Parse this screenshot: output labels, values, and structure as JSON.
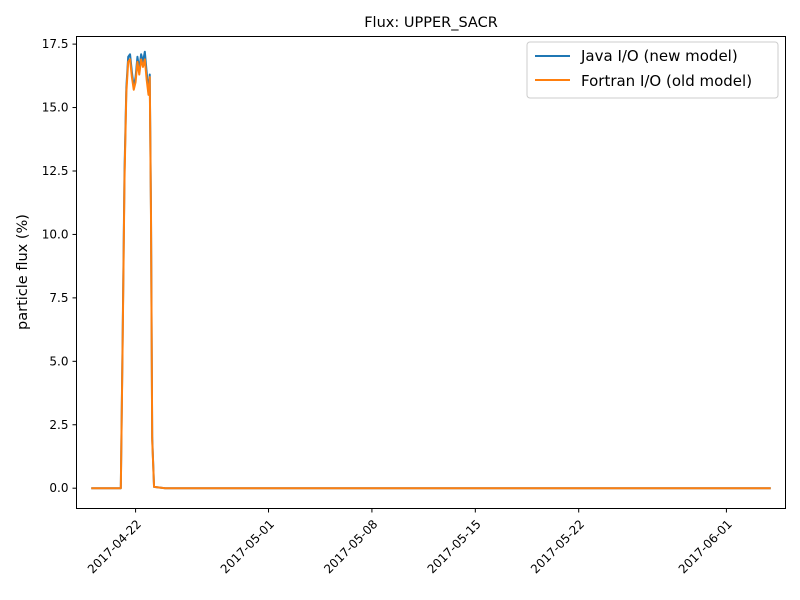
{
  "chart_data": {
    "type": "line",
    "title": "Flux: UPPER_SACR",
    "xlabel": "",
    "ylabel": "particle flux (%)",
    "x_start": "2017-04-19",
    "x_end": "2017-06-04",
    "xlim": [
      "2017-04-18",
      "2017-06-05"
    ],
    "ylim": [
      -0.8,
      17.8
    ],
    "x_ticks": [
      "2017-04-22",
      "2017-05-01",
      "2017-05-08",
      "2017-05-15",
      "2017-05-22",
      "2017-06-01"
    ],
    "y_ticks": [
      "0.0",
      "2.5",
      "5.0",
      "7.5",
      "10.0",
      "12.5",
      "15.0",
      "17.5"
    ],
    "legend": {
      "placement": "top-right",
      "entries": [
        "Java I/O (new model)",
        "Fortran I/O (old model)"
      ]
    },
    "grid": false,
    "series": [
      {
        "name": "Java I/O (new model)",
        "color": "#1f77b4",
        "points": [
          [
            "2017-04-19 00:00",
            0
          ],
          [
            "2017-04-20 00:00",
            0
          ],
          [
            "2017-04-21 00:00",
            0
          ],
          [
            "2017-04-21 03:00",
            6.0
          ],
          [
            "2017-04-21 06:00",
            12.5
          ],
          [
            "2017-04-21 09:00",
            15.8
          ],
          [
            "2017-04-21 12:00",
            17.0
          ],
          [
            "2017-04-21 15:00",
            17.1
          ],
          [
            "2017-04-21 18:00",
            16.4
          ],
          [
            "2017-04-21 21:00",
            15.8
          ],
          [
            "2017-04-22 00:00",
            16.2
          ],
          [
            "2017-04-22 03:00",
            17.0
          ],
          [
            "2017-04-22 06:00",
            16.5
          ],
          [
            "2017-04-22 09:00",
            17.1
          ],
          [
            "2017-04-22 12:00",
            16.8
          ],
          [
            "2017-04-22 15:00",
            17.2
          ],
          [
            "2017-04-22 18:00",
            16.4
          ],
          [
            "2017-04-22 21:00",
            15.6
          ],
          [
            "2017-04-22 23:00",
            16.3
          ],
          [
            "2017-04-23 01:00",
            11.0
          ],
          [
            "2017-04-23 03:00",
            2.0
          ],
          [
            "2017-04-23 06:00",
            0.05
          ],
          [
            "2017-04-24 00:00",
            0
          ],
          [
            "2017-06-04 00:00",
            0
          ]
        ]
      },
      {
        "name": "Fortran I/O (old model)",
        "color": "#ff7f0e",
        "points": [
          [
            "2017-04-19 00:00",
            0
          ],
          [
            "2017-04-20 00:00",
            0
          ],
          [
            "2017-04-21 00:00",
            0
          ],
          [
            "2017-04-21 03:00",
            5.8
          ],
          [
            "2017-04-21 06:00",
            12.2
          ],
          [
            "2017-04-21 09:00",
            15.6
          ],
          [
            "2017-04-21 12:00",
            16.8
          ],
          [
            "2017-04-21 15:00",
            16.9
          ],
          [
            "2017-04-21 18:00",
            16.2
          ],
          [
            "2017-04-21 21:00",
            15.7
          ],
          [
            "2017-04-22 00:00",
            16.0
          ],
          [
            "2017-04-22 03:00",
            16.8
          ],
          [
            "2017-04-22 06:00",
            16.3
          ],
          [
            "2017-04-22 09:00",
            16.9
          ],
          [
            "2017-04-22 12:00",
            16.6
          ],
          [
            "2017-04-22 15:00",
            16.9
          ],
          [
            "2017-04-22 18:00",
            16.1
          ],
          [
            "2017-04-22 21:00",
            15.5
          ],
          [
            "2017-04-22 23:00",
            16.2
          ],
          [
            "2017-04-23 01:00",
            10.8
          ],
          [
            "2017-04-23 03:00",
            1.9
          ],
          [
            "2017-04-23 06:00",
            0.05
          ],
          [
            "2017-04-24 00:00",
            0
          ],
          [
            "2017-06-04 00:00",
            0
          ]
        ]
      }
    ]
  }
}
